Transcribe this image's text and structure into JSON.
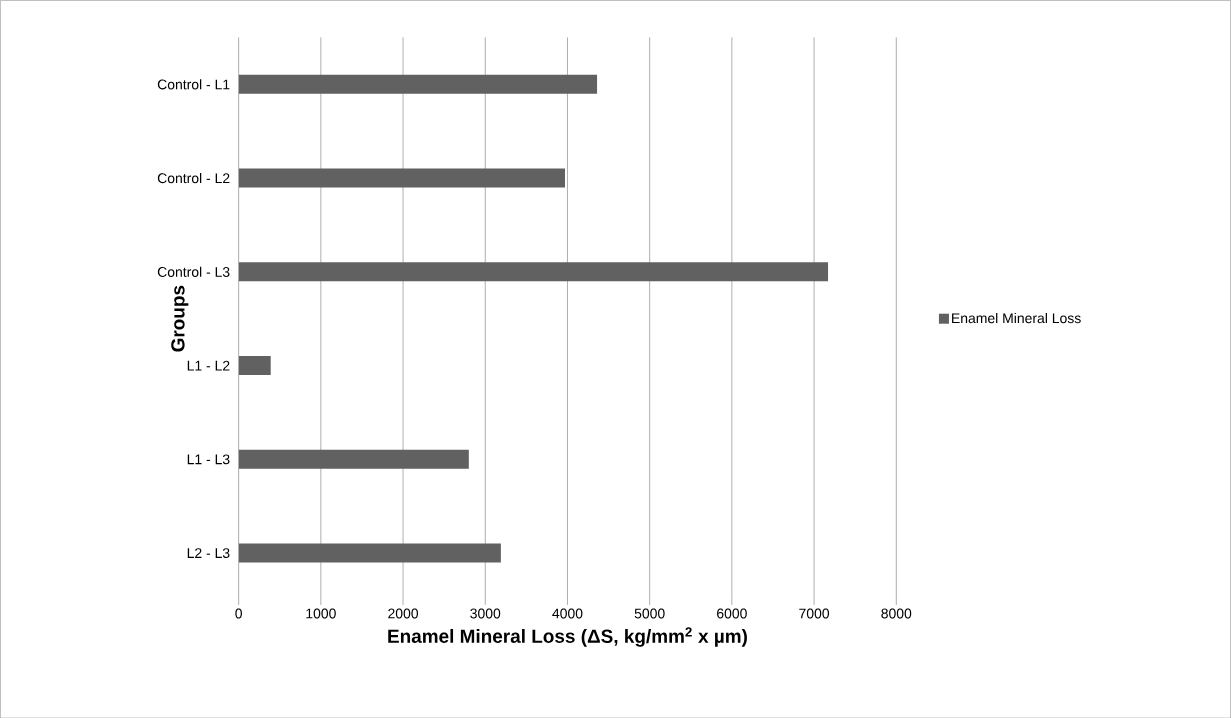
{
  "chart_data": {
    "type": "bar",
    "orientation": "horizontal",
    "xlabel": "Enamel Mineral Loss (ΔS, kg/mm$^{2}$ x µm)",
    "ylabel": "Groups",
    "categories": [
      "Control - L1",
      "Control - L2",
      "Control - L3",
      "L1 - L2",
      "L1 - L3",
      "L2 - L3"
    ],
    "series": [
      {
        "name": "Enamel Mineral Loss",
        "color": "#616161",
        "values": [
          4360,
          3970,
          7170,
          390,
          2800,
          3190
        ]
      }
    ],
    "xlim": [
      0,
      8000
    ],
    "xticks": [
      0,
      1000,
      2000,
      3000,
      4000,
      5000,
      6000,
      7000,
      8000
    ],
    "grid": "x",
    "legend": "right"
  }
}
